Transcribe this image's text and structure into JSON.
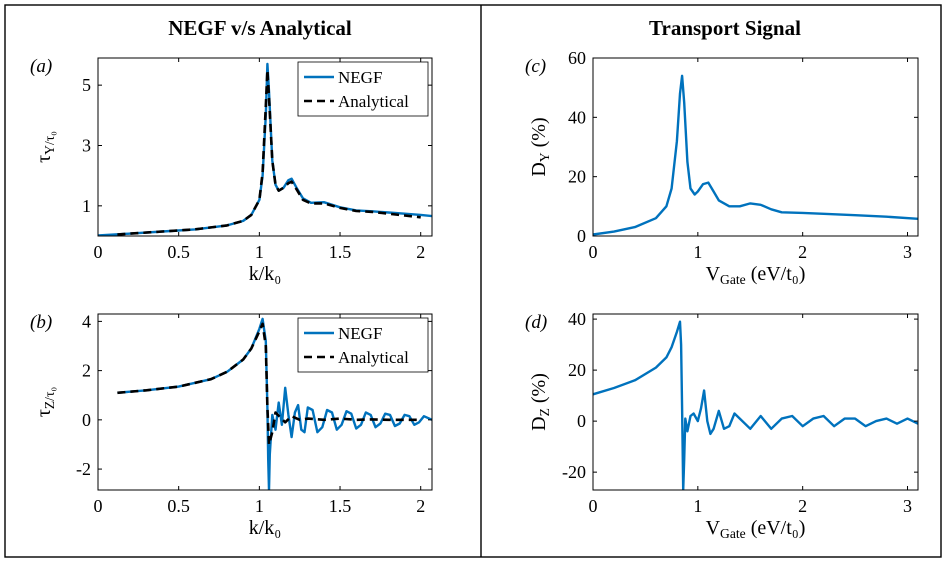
{
  "titles": {
    "left": "NEGF v/s Analytical",
    "right": "Transport Signal"
  },
  "colors": {
    "negf": "#0072BD",
    "analytical": "#000000",
    "axis": "#000000"
  },
  "chart_data": [
    {
      "id": "a",
      "type": "line",
      "panel_label": "(a)",
      "xlabel": "k/k₀",
      "ylabel": "τ_Y/τ₀",
      "xlim": [
        0,
        2.07
      ],
      "ylim": [
        0,
        5.9
      ],
      "xticks": [
        0,
        0.5,
        1,
        1.5,
        2
      ],
      "xtick_labels": [
        "0",
        "0.5",
        "1",
        "1.5",
        "2"
      ],
      "yticks": [
        1,
        3,
        5
      ],
      "ytick_labels": [
        "1",
        "3",
        "5"
      ],
      "legend": "top-right",
      "series": [
        {
          "name": "NEGF",
          "style": "solid",
          "x": [
            0,
            0.2,
            0.4,
            0.6,
            0.8,
            0.9,
            0.95,
            1.0,
            1.02,
            1.04,
            1.05,
            1.06,
            1.08,
            1.1,
            1.12,
            1.15,
            1.18,
            1.2,
            1.23,
            1.27,
            1.32,
            1.4,
            1.5,
            1.6,
            1.7,
            1.8,
            1.9,
            2.0,
            2.07
          ],
          "y": [
            0.02,
            0.08,
            0.15,
            0.22,
            0.35,
            0.5,
            0.7,
            1.2,
            2.0,
            4.0,
            5.7,
            4.8,
            2.5,
            1.7,
            1.5,
            1.6,
            1.85,
            1.9,
            1.6,
            1.25,
            1.1,
            1.12,
            0.95,
            0.85,
            0.82,
            0.78,
            0.74,
            0.7,
            0.66
          ]
        },
        {
          "name": "Analytical",
          "style": "dashed",
          "x": [
            0.12,
            0.2,
            0.4,
            0.6,
            0.8,
            0.9,
            0.95,
            1.0,
            1.02,
            1.04,
            1.05,
            1.06,
            1.08,
            1.1,
            1.12,
            1.15,
            1.18,
            1.2,
            1.23,
            1.27,
            1.32,
            1.4,
            1.5,
            1.6,
            1.7,
            1.8,
            1.9,
            2.0
          ],
          "y": [
            0.05,
            0.08,
            0.15,
            0.22,
            0.35,
            0.5,
            0.7,
            1.2,
            2.1,
            4.3,
            5.5,
            4.6,
            2.5,
            1.7,
            1.5,
            1.6,
            1.75,
            1.8,
            1.55,
            1.2,
            1.08,
            1.08,
            0.93,
            0.83,
            0.8,
            0.74,
            0.68,
            0.62
          ]
        }
      ]
    },
    {
      "id": "b",
      "type": "line",
      "panel_label": "(b)",
      "xlabel": "k/k₀",
      "ylabel": "τ_Z/τ₀",
      "xlim": [
        0,
        2.07
      ],
      "ylim": [
        -2.85,
        4.3
      ],
      "xticks": [
        0,
        0.5,
        1,
        1.5,
        2
      ],
      "xtick_labels": [
        "0",
        "0.5",
        "1",
        "1.5",
        "2"
      ],
      "yticks": [
        -2,
        0,
        2,
        4
      ],
      "ytick_labels": [
        "-2",
        "0",
        "2",
        "4"
      ],
      "legend": "top-right",
      "series": [
        {
          "name": "NEGF",
          "style": "solid",
          "x": [
            0.12,
            0.3,
            0.5,
            0.7,
            0.8,
            0.9,
            0.95,
            1.0,
            1.02,
            1.04,
            1.05,
            1.055,
            1.06,
            1.065,
            1.08,
            1.1,
            1.12,
            1.14,
            1.16,
            1.18,
            1.2,
            1.22,
            1.24,
            1.26,
            1.28,
            1.3,
            1.33,
            1.36,
            1.39,
            1.42,
            1.45,
            1.48,
            1.51,
            1.54,
            1.57,
            1.6,
            1.63,
            1.66,
            1.69,
            1.72,
            1.75,
            1.78,
            1.81,
            1.84,
            1.87,
            1.9,
            1.93,
            1.96,
            1.99,
            2.02,
            2.07
          ],
          "y": [
            1.1,
            1.2,
            1.35,
            1.65,
            1.95,
            2.45,
            2.9,
            3.7,
            4.1,
            3.2,
            0.5,
            -1.6,
            -2.85,
            -1.4,
            0.2,
            -0.4,
            0.7,
            -0.2,
            1.3,
            0.2,
            -0.7,
            0.3,
            0.6,
            -0.4,
            -0.5,
            0.5,
            0.4,
            -0.5,
            -0.3,
            0.4,
            0.3,
            -0.4,
            -0.2,
            0.35,
            0.25,
            -0.35,
            -0.2,
            0.3,
            0.2,
            -0.3,
            -0.15,
            0.25,
            0.2,
            -0.25,
            -0.15,
            0.2,
            0.15,
            -0.2,
            -0.1,
            0.15,
            0.0
          ]
        },
        {
          "name": "Analytical",
          "style": "dashed",
          "x": [
            0.12,
            0.3,
            0.5,
            0.7,
            0.8,
            0.9,
            0.95,
            1.0,
            1.02,
            1.04,
            1.05,
            1.06,
            1.08,
            1.1,
            1.13,
            1.16,
            1.2,
            1.25,
            1.3,
            1.4,
            1.5,
            1.6,
            1.7,
            1.8,
            1.9,
            2.0
          ],
          "y": [
            1.1,
            1.2,
            1.35,
            1.65,
            1.95,
            2.45,
            2.9,
            3.6,
            3.9,
            3.0,
            0.5,
            -1.0,
            -0.5,
            0.3,
            0.1,
            -0.1,
            0.15,
            0.0,
            0.05,
            0.0,
            0.05,
            0.0,
            0.02,
            0.0,
            0.0,
            0.0
          ]
        }
      ]
    },
    {
      "id": "c",
      "type": "line",
      "panel_label": "(c)",
      "xlabel": "V_Gate (eV/t₀)",
      "ylabel": "D_Y (%)",
      "xlim": [
        0,
        3.1
      ],
      "ylim": [
        0,
        60
      ],
      "xticks": [
        0,
        1,
        2,
        3
      ],
      "xtick_labels": [
        "0",
        "1",
        "2",
        "3"
      ],
      "yticks": [
        0,
        20,
        40,
        60
      ],
      "ytick_labels": [
        "0",
        "20",
        "40",
        "60"
      ],
      "series": [
        {
          "name": "",
          "style": "solid",
          "x": [
            0,
            0.2,
            0.4,
            0.6,
            0.7,
            0.75,
            0.8,
            0.83,
            0.85,
            0.87,
            0.9,
            0.93,
            0.97,
            1.0,
            1.05,
            1.1,
            1.15,
            1.2,
            1.3,
            1.4,
            1.5,
            1.6,
            1.7,
            1.8,
            2.0,
            2.2,
            2.5,
            2.8,
            3.1
          ],
          "y": [
            0.5,
            1.5,
            3,
            6,
            10,
            16,
            32,
            48,
            54,
            45,
            25,
            16,
            14,
            15,
            17.5,
            18,
            15,
            12,
            10,
            10,
            11,
            10.5,
            9,
            8,
            7.8,
            7.5,
            7,
            6.5,
            5.8
          ]
        }
      ]
    },
    {
      "id": "d",
      "type": "line",
      "panel_label": "(d)",
      "xlabel": "V_Gate (eV/t₀)",
      "ylabel": "D_Z (%)",
      "xlim": [
        0,
        3.1
      ],
      "ylim": [
        -27,
        42
      ],
      "xticks": [
        0,
        1,
        2,
        3
      ],
      "xtick_labels": [
        "0",
        "1",
        "2",
        "3"
      ],
      "yticks": [
        -20,
        0,
        20,
        40
      ],
      "ytick_labels": [
        "-20",
        "0",
        "20",
        "40"
      ],
      "series": [
        {
          "name": "",
          "style": "solid",
          "x": [
            0,
            0.2,
            0.4,
            0.6,
            0.7,
            0.75,
            0.8,
            0.83,
            0.84,
            0.85,
            0.86,
            0.87,
            0.88,
            0.9,
            0.93,
            0.96,
            1.0,
            1.03,
            1.06,
            1.09,
            1.12,
            1.15,
            1.2,
            1.25,
            1.3,
            1.35,
            1.4,
            1.5,
            1.6,
            1.7,
            1.8,
            1.9,
            2.0,
            2.1,
            2.2,
            2.3,
            2.4,
            2.5,
            2.6,
            2.7,
            2.8,
            2.9,
            3.0,
            3.1
          ],
          "y": [
            10.5,
            13,
            16,
            21,
            25,
            29,
            35,
            39,
            30,
            5,
            -27,
            -15,
            1,
            -4,
            2,
            3,
            0,
            5,
            12,
            0,
            -5,
            -3,
            4,
            -3,
            -2,
            3,
            1,
            -3,
            2,
            -3,
            1,
            2,
            -2,
            1,
            2,
            -2,
            1,
            1,
            -2,
            0,
            1,
            -1,
            1,
            -1
          ]
        }
      ]
    }
  ]
}
